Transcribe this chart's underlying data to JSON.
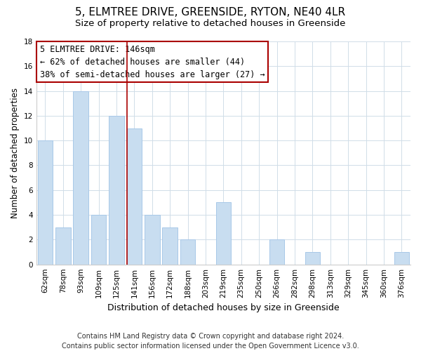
{
  "title": "5, ELMTREE DRIVE, GREENSIDE, RYTON, NE40 4LR",
  "subtitle": "Size of property relative to detached houses in Greenside",
  "xlabel": "Distribution of detached houses by size in Greenside",
  "ylabel": "Number of detached properties",
  "categories": [
    "62sqm",
    "78sqm",
    "93sqm",
    "109sqm",
    "125sqm",
    "141sqm",
    "156sqm",
    "172sqm",
    "188sqm",
    "203sqm",
    "219sqm",
    "235sqm",
    "250sqm",
    "266sqm",
    "282sqm",
    "298sqm",
    "313sqm",
    "329sqm",
    "345sqm",
    "360sqm",
    "376sqm"
  ],
  "values": [
    10,
    3,
    14,
    4,
    12,
    11,
    4,
    3,
    2,
    0,
    5,
    0,
    0,
    2,
    0,
    1,
    0,
    0,
    0,
    0,
    1
  ],
  "bar_color": "#c8ddf0",
  "bar_edge_color": "#a8c8e8",
  "highlight_index": 5,
  "highlight_line_color": "#aa0000",
  "ylim": [
    0,
    18
  ],
  "yticks": [
    0,
    2,
    4,
    6,
    8,
    10,
    12,
    14,
    16,
    18
  ],
  "annotation_line1": "5 ELMTREE DRIVE: 146sqm",
  "annotation_line2": "← 62% of detached houses are smaller (44)",
  "annotation_line3": "38% of semi-detached houses are larger (27) →",
  "annotation_box_color": "#ffffff",
  "annotation_box_edge_color": "#aa0000",
  "footer_line1": "Contains HM Land Registry data © Crown copyright and database right 2024.",
  "footer_line2": "Contains public sector information licensed under the Open Government Licence v3.0.",
  "background_color": "#ffffff",
  "grid_color": "#d0dde8",
  "title_fontsize": 11,
  "subtitle_fontsize": 9.5,
  "xlabel_fontsize": 9,
  "ylabel_fontsize": 8.5,
  "tick_fontsize": 7.5,
  "annotation_fontsize": 8.5,
  "footer_fontsize": 7
}
